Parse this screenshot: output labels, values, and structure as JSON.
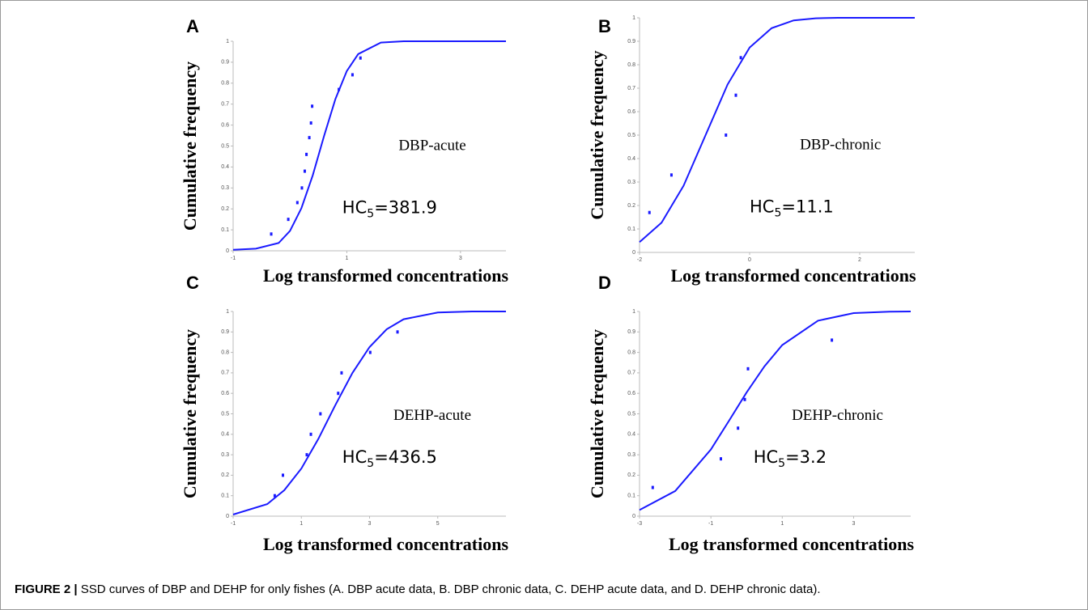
{
  "chart_data": [
    {
      "type": "scatter",
      "panel_label": "A",
      "annotation": "DBP-acute",
      "hc_label": {
        "base": "HC",
        "sub": "5",
        "rest": "=381.9"
      },
      "xlabel": "Log transformed concentrations",
      "ylabel": "Cumulative frequency",
      "xlim": [
        -1,
        3.8
      ],
      "ylim": [
        0,
        1
      ],
      "xticks": [
        -1,
        1,
        3
      ],
      "yticks": [
        0,
        0.1,
        0.2,
        0.3,
        0.4,
        0.5,
        0.6,
        0.7,
        0.8,
        0.9,
        1
      ],
      "series": [
        {
          "mode": "markers",
          "color": "#1a1aff",
          "x": [
            -0.33,
            -0.03,
            0.13,
            0.21,
            0.26,
            0.29,
            0.34,
            0.37,
            0.39,
            0.86,
            1.1,
            1.24
          ],
          "values": [
            0.08,
            0.15,
            0.23,
            0.3,
            0.38,
            0.46,
            0.54,
            0.61,
            0.69,
            0.77,
            0.84,
            0.92
          ]
        },
        {
          "mode": "line",
          "color": "#1a1aff",
          "x": [
            -1,
            -0.6,
            -0.2,
            0,
            0.2,
            0.4,
            0.6,
            0.8,
            1,
            1.2,
            1.6,
            2,
            2.6,
            3.2,
            3.8
          ],
          "values": [
            0.005,
            0.01,
            0.037,
            0.095,
            0.203,
            0.36,
            0.548,
            0.725,
            0.858,
            0.939,
            0.994,
            1,
            1,
            1,
            1
          ]
        }
      ]
    },
    {
      "type": "scatter",
      "panel_label": "B",
      "annotation": "DBP-chronic",
      "hc_label": {
        "base": "HC",
        "sub": "5",
        "rest": "=11.1"
      },
      "xlabel": "Log transformed concentrations",
      "ylabel": "Cumulative frequency",
      "xlim": [
        -2,
        3
      ],
      "ylim": [
        0,
        1
      ],
      "xticks": [
        -2,
        0,
        2
      ],
      "yticks": [
        0,
        0.1,
        0.2,
        0.3,
        0.4,
        0.5,
        0.6,
        0.7,
        0.8,
        0.9,
        1
      ],
      "series": [
        {
          "mode": "markers",
          "color": "#1a1aff",
          "x": [
            -1.82,
            -1.42,
            -0.43,
            -0.25,
            -0.16
          ],
          "values": [
            0.17,
            0.33,
            0.5,
            0.67,
            0.83
          ]
        },
        {
          "mode": "line",
          "color": "#1a1aff",
          "x": [
            -2,
            -1.6,
            -1.2,
            -0.8,
            -0.4,
            0,
            0.4,
            0.8,
            1.2,
            1.6,
            2,
            2.5,
            3
          ],
          "values": [
            0.044,
            0.127,
            0.284,
            0.5,
            0.716,
            0.873,
            0.956,
            0.989,
            0.998,
            1,
            1,
            1,
            1
          ]
        }
      ]
    },
    {
      "type": "scatter",
      "panel_label": "C",
      "annotation": "DEHP-acute",
      "hc_label": {
        "base": "HC",
        "sub": "5",
        "rest": "=436.5"
      },
      "xlabel": "Log transformed concentrations",
      "ylabel": "Cumulative frequency",
      "xlim": [
        -1,
        7
      ],
      "ylim": [
        0,
        1
      ],
      "xticks": [
        -1,
        1,
        3,
        5
      ],
      "yticks": [
        0,
        0.1,
        0.2,
        0.3,
        0.4,
        0.5,
        0.6,
        0.7,
        0.8,
        0.9,
        1
      ],
      "series": [
        {
          "mode": "markers",
          "color": "#1a1aff",
          "x": [
            0.22,
            0.46,
            1.16,
            1.28,
            1.56,
            2.08,
            2.18,
            3.02,
            3.82
          ],
          "values": [
            0.1,
            0.2,
            0.3,
            0.4,
            0.5,
            0.6,
            0.7,
            0.8,
            0.9
          ]
        },
        {
          "mode": "line",
          "color": "#1a1aff",
          "x": [
            -1,
            0,
            0.5,
            1,
            1.5,
            2,
            2.5,
            3,
            3.5,
            4,
            5,
            6,
            7
          ],
          "values": [
            0.008,
            0.059,
            0.127,
            0.233,
            0.378,
            0.544,
            0.7,
            0.826,
            0.913,
            0.962,
            0.995,
            1,
            1
          ]
        }
      ]
    },
    {
      "type": "scatter",
      "panel_label": "D",
      "annotation": "DEHP-chronic",
      "hc_label": {
        "base": "HC",
        "sub": "5",
        "rest": "=3.2"
      },
      "xlabel": "Log transformed concentrations",
      "ylabel": "Cumulative frequency",
      "xlim": [
        -3,
        4.6
      ],
      "ylim": [
        0,
        1
      ],
      "xticks": [
        -3,
        -1,
        1,
        3
      ],
      "yticks": [
        0,
        0.1,
        0.2,
        0.3,
        0.4,
        0.5,
        0.6,
        0.7,
        0.8,
        0.9,
        1
      ],
      "series": [
        {
          "mode": "markers",
          "color": "#1a1aff",
          "x": [
            -2.63,
            -0.72,
            -0.24,
            -0.05,
            0.04,
            2.39
          ],
          "values": [
            0.14,
            0.28,
            0.43,
            0.57,
            0.72,
            0.86
          ]
        },
        {
          "mode": "line",
          "color": "#1a1aff",
          "x": [
            -3,
            -2,
            -1,
            -0.5,
            0,
            0.5,
            1,
            2,
            3,
            4,
            4.6
          ],
          "values": [
            0.03,
            0.123,
            0.326,
            0.464,
            0.604,
            0.732,
            0.836,
            0.955,
            0.992,
            0.999,
            1
          ]
        }
      ]
    }
  ],
  "caption": {
    "label": "FIGURE 2 |",
    "text": "SSD curves of DBP and DEHP for only fishes (A. DBP acute data, B. DBP chronic data, C. DEHP acute data, and D. DEHP chronic data)."
  }
}
